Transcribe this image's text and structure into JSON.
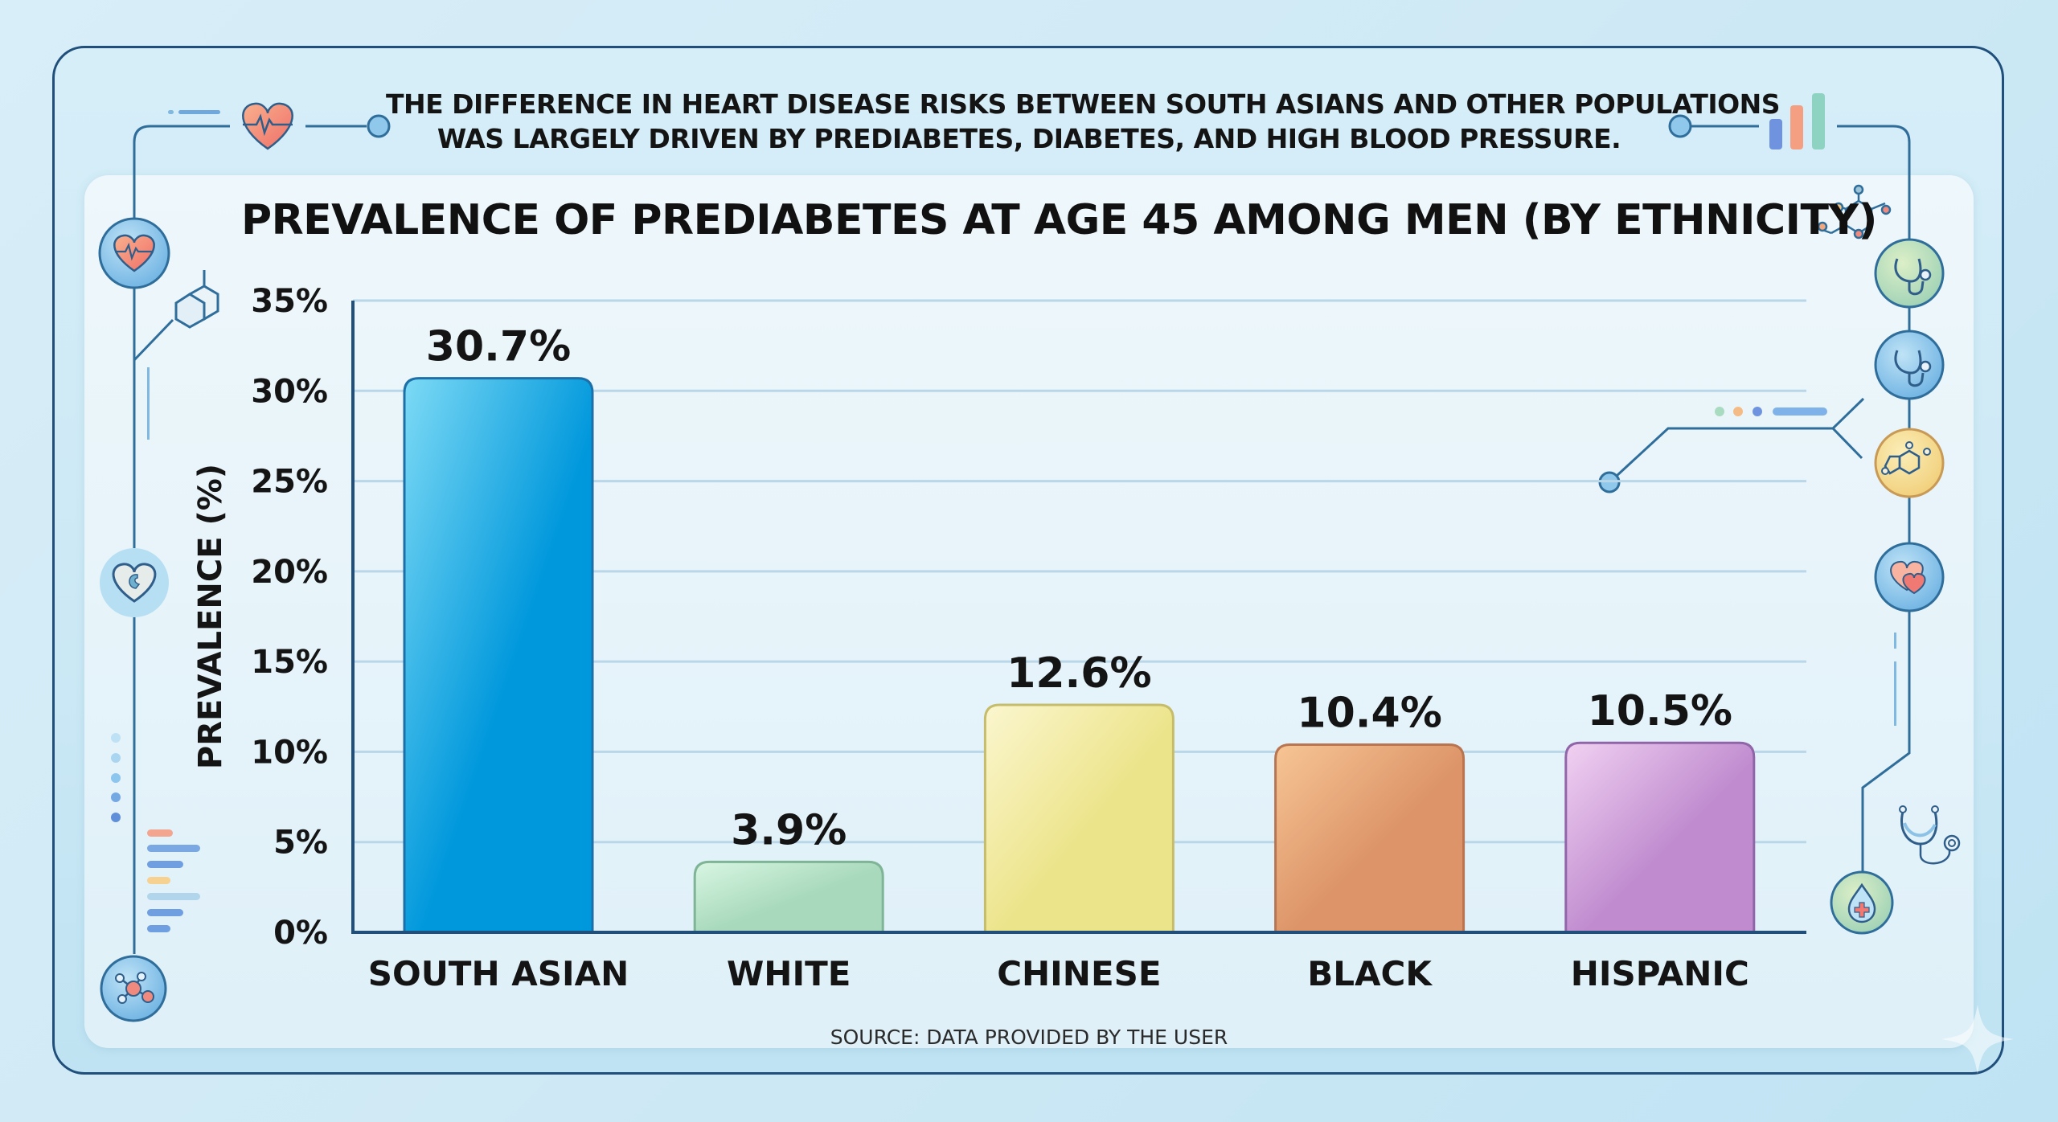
{
  "header": {
    "subtitle_lines": [
      "THE DIFFERENCE IN HEART DISEASE RISKS BETWEEN SOUTH ASIANS AND OTHER POPULATIONS",
      "WAS LARGELY DRIVEN BY PREDIABETES, DIABETES, AND HIGH BLOOD PRESSURE."
    ]
  },
  "footer": {
    "source": "SOURCE: DATA PROVIDED BY THE USER"
  },
  "decorations": {
    "icons": [
      "heart-pulse-icon",
      "heart-pulse-badge-icon",
      "molecule-ring-icon",
      "heart-badge-icon",
      "data-dots-icon",
      "bar-lines-icon",
      "molecule-network-icon",
      "bar-chart-icon",
      "benzene-icon",
      "stethoscope-green-icon",
      "stethoscope-blue-icon",
      "chemical-structure-icon",
      "double-heart-icon",
      "stethoscope-icon",
      "blood-drop-icon",
      "sparkle-icon"
    ]
  },
  "colors": {
    "frame": "#1f4f7a",
    "axis": "#1f4f7a",
    "grid": "#b9d7e8",
    "text": "#141414"
  },
  "chart_data": {
    "type": "bar",
    "title": "PREVALENCE OF PREDIABETES AT AGE 45 AMONG MEN (BY ETHNICITY)",
    "xlabel": "",
    "ylabel": "PREVALENCE (%)",
    "categories": [
      "SOUTH ASIAN",
      "WHITE",
      "CHINESE",
      "BLACK",
      "HISPANIC"
    ],
    "values": [
      30.7,
      3.9,
      12.6,
      10.4,
      10.5
    ],
    "value_labels": [
      "30.7%",
      "3.9%",
      "12.6%",
      "10.4%",
      "10.5%"
    ],
    "ylim": [
      0,
      35
    ],
    "yticks": [
      0,
      5,
      10,
      15,
      20,
      25,
      30,
      35
    ],
    "ytick_labels": [
      "0%",
      "5%",
      "10%",
      "15%",
      "20%",
      "25%",
      "30%",
      "35%"
    ],
    "grid": true,
    "legend": "none",
    "bar_colors": [
      {
        "top": "#7ddaf5",
        "bottom": "#0098dc",
        "stroke": "#1d6fa8"
      },
      {
        "top": "#d8f6e2",
        "bottom": "#a8d9bc",
        "stroke": "#7fb596"
      },
      {
        "top": "#fbf6cf",
        "bottom": "#ece48a",
        "stroke": "#c6bd6c"
      },
      {
        "top": "#f7c594",
        "bottom": "#dc9468",
        "stroke": "#b97450"
      },
      {
        "top": "#f1d1f2",
        "bottom": "#c08ccf",
        "stroke": "#9166a8"
      }
    ]
  }
}
